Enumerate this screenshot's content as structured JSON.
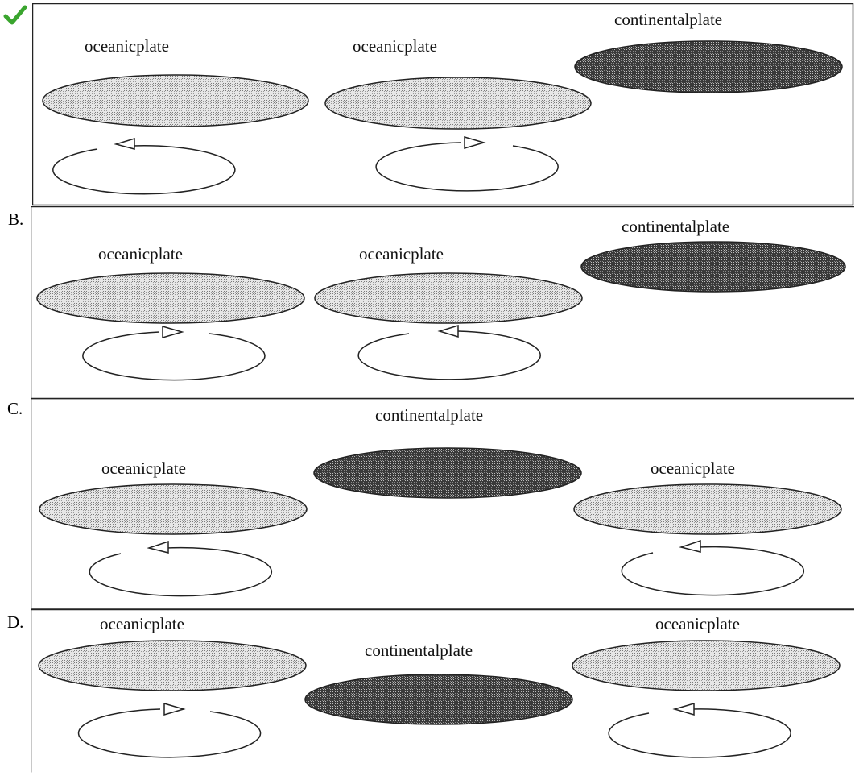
{
  "colors": {
    "correct_check": "#3aa52e",
    "oceanic_fill": "#cfcfcf",
    "continental_fill": "#4a4a4a",
    "outline": "#222222"
  },
  "icons": {
    "correct_marker": "checkmark-icon",
    "flow_arrow": "arrowhead-icon"
  },
  "options": [
    {
      "letter": "",
      "correct": true,
      "plates": [
        {
          "kind": "oceanic",
          "label": "oceanicplate"
        },
        {
          "kind": "oceanic",
          "label": "oceanicplate"
        },
        {
          "kind": "continental",
          "label": "continentalplate"
        }
      ],
      "convection": [
        "counterclockwise",
        "clockwise"
      ]
    },
    {
      "letter": "B.",
      "correct": false,
      "plates": [
        {
          "kind": "oceanic",
          "label": "oceanicplate"
        },
        {
          "kind": "oceanic",
          "label": "oceanicplate"
        },
        {
          "kind": "continental",
          "label": "continentalplate"
        }
      ],
      "convection": [
        "clockwise",
        "counterclockwise"
      ]
    },
    {
      "letter": "C.",
      "correct": false,
      "plates": [
        {
          "kind": "oceanic",
          "label": "oceanicplate"
        },
        {
          "kind": "continental",
          "label": "continentalplate"
        },
        {
          "kind": "oceanic",
          "label": "oceanicplate"
        }
      ],
      "convection": [
        "counterclockwise",
        "counterclockwise"
      ]
    },
    {
      "letter": "D.",
      "correct": false,
      "plates": [
        {
          "kind": "oceanic",
          "label": "oceanicplate"
        },
        {
          "kind": "continental",
          "label": "continentalplate"
        },
        {
          "kind": "oceanic",
          "label": "oceanicplate"
        }
      ],
      "convection": [
        "clockwise",
        "counterclockwise"
      ]
    }
  ]
}
